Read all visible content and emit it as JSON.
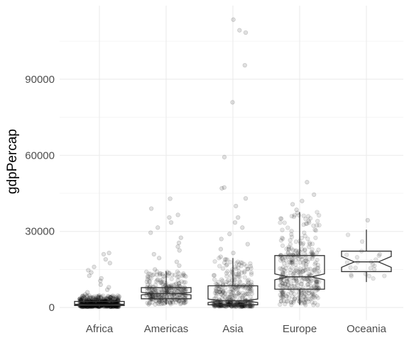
{
  "chart_data": {
    "type": "box",
    "overlay": "jittered points",
    "notched": true,
    "theme": "minimal",
    "grid": true,
    "xlabel": "",
    "ylabel": "gdpPercap",
    "ylim": [
      -5000,
      119000
    ],
    "yticks": [
      0,
      30000,
      60000,
      90000
    ],
    "ytick_labels": [
      "0",
      "30000",
      "60000",
      "90000"
    ],
    "categories": [
      "Africa",
      "Americas",
      "Asia",
      "Europe",
      "Oceania"
    ],
    "boxes": [
      {
        "category": "Africa",
        "whisker_low": 241,
        "q1": 761,
        "median": 1192,
        "q3": 2377,
        "whisker_high": 4800,
        "notch": [
          1080,
          1300
        ]
      },
      {
        "category": "Americas",
        "whisker_low": 1202,
        "q1": 3428,
        "median": 5466,
        "q3": 7830,
        "whisker_high": 14300,
        "notch": [
          4960,
          5970
        ]
      },
      {
        "category": "Asia",
        "whisker_low": 331,
        "q1": 1057,
        "median": 2647,
        "q3": 8549,
        "whisker_high": 19500,
        "notch": [
          1960,
          3340
        ]
      },
      {
        "category": "Europe",
        "whisker_low": 973,
        "q1": 7213,
        "median": 12082,
        "q3": 20461,
        "whisker_high": 37600,
        "notch": [
          10910,
          13250
        ]
      },
      {
        "category": "Oceania",
        "whisker_low": 10040,
        "q1": 14142,
        "median": 17983,
        "q3": 22214,
        "whisker_high": 30700,
        "notch": [
          15830,
          20130
        ]
      }
    ],
    "outliers": [
      {
        "category": "Africa",
        "values": [
          5200,
          6000,
          7000,
          8000,
          9000,
          10500,
          11500,
          12500,
          13800,
          14700,
          16000,
          17500,
          19000,
          21000,
          21500
        ]
      },
      {
        "category": "Americas",
        "values": [
          15000,
          16500,
          18000,
          19500,
          21000,
          22500,
          24000,
          25500,
          27500,
          29500,
          31500,
          33500,
          35500,
          36500,
          39000,
          42900
        ]
      },
      {
        "category": "Asia",
        "values": [
          20000,
          21500,
          23000,
          25000,
          27000,
          29000,
          31500,
          33500,
          35500,
          40000,
          43000,
          47000,
          47300,
          59300,
          80900,
          95500,
          108400,
          109300,
          113500
        ]
      },
      {
        "category": "Europe",
        "values": [
          38500,
          40700,
          42000,
          44500,
          49400
        ]
      },
      {
        "category": "Oceania",
        "values": [
          34400
        ]
      }
    ],
    "points_per_category": [
      624,
      300,
      396,
      360,
      24
    ]
  }
}
